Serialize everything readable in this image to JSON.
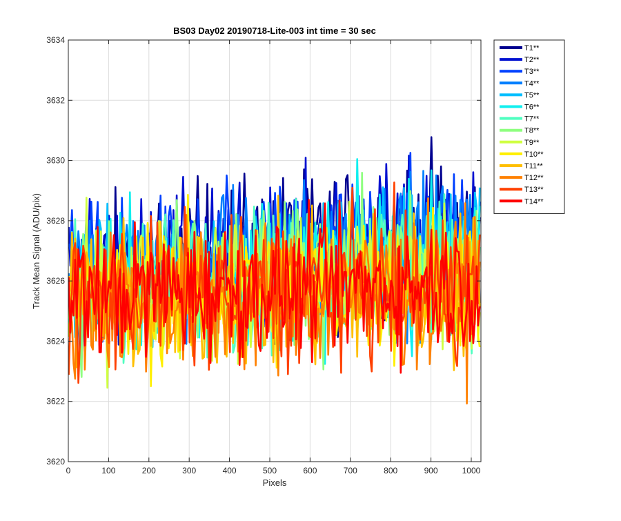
{
  "chart_data": {
    "type": "line",
    "title": "BS03 Day02 20190718-Lite-003 int time = 30 sec",
    "xlabel": "Pixels",
    "ylabel": "Track Mean Signal (ADU/pix)",
    "xlim": [
      0,
      1024
    ],
    "ylim": [
      3620,
      3634
    ],
    "xticks": [
      0,
      100,
      200,
      300,
      400,
      500,
      600,
      700,
      800,
      900,
      1000
    ],
    "yticks": [
      3620,
      3622,
      3624,
      3626,
      3628,
      3630,
      3632,
      3634
    ],
    "grid": true,
    "legend_position": "outside-top-right",
    "x": {
      "start": 1,
      "end": 1024,
      "step": 4
    },
    "series": [
      {
        "name": "T1**",
        "color": "#00008f",
        "mean_start": 3626.3,
        "mean_end": 3627.8,
        "spread_start": 2.1,
        "spread_end": 2.4
      },
      {
        "name": "T2**",
        "color": "#0010d0",
        "mean_start": 3626.2,
        "mean_end": 3627.6,
        "spread_start": 2.1,
        "spread_end": 2.3
      },
      {
        "name": "T3**",
        "color": "#0040ff",
        "mean_start": 3626.1,
        "mean_end": 3627.4,
        "spread_start": 2.1,
        "spread_end": 2.3
      },
      {
        "name": "T4**",
        "color": "#0080ff",
        "mean_start": 3626.0,
        "mean_end": 3627.2,
        "spread_start": 2.1,
        "spread_end": 2.3
      },
      {
        "name": "T5**",
        "color": "#00bfff",
        "mean_start": 3625.9,
        "mean_end": 3627.0,
        "spread_start": 2.1,
        "spread_end": 2.3
      },
      {
        "name": "T6**",
        "color": "#10efef",
        "mean_start": 3625.8,
        "mean_end": 3626.8,
        "spread_start": 2.1,
        "spread_end": 2.3
      },
      {
        "name": "T7**",
        "color": "#50ffc0",
        "mean_start": 3625.7,
        "mean_end": 3626.6,
        "spread_start": 2.1,
        "spread_end": 2.3
      },
      {
        "name": "T8**",
        "color": "#8fff80",
        "mean_start": 3625.6,
        "mean_end": 3626.4,
        "spread_start": 2.1,
        "spread_end": 2.3
      },
      {
        "name": "T9**",
        "color": "#cfff40",
        "mean_start": 3625.5,
        "mean_end": 3626.2,
        "spread_start": 2.1,
        "spread_end": 2.3
      },
      {
        "name": "T10**",
        "color": "#ffef00",
        "mean_start": 3625.4,
        "mean_end": 3626.0,
        "spread_start": 2.2,
        "spread_end": 2.3
      },
      {
        "name": "T11**",
        "color": "#ffbf00",
        "mean_start": 3625.3,
        "mean_end": 3625.8,
        "spread_start": 2.3,
        "spread_end": 2.3
      },
      {
        "name": "T12**",
        "color": "#ff8000",
        "mean_start": 3625.3,
        "mean_end": 3625.7,
        "spread_start": 2.3,
        "spread_end": 2.3
      },
      {
        "name": "T13**",
        "color": "#ff4000",
        "mean_start": 3625.4,
        "mean_end": 3625.8,
        "spread_start": 2.2,
        "spread_end": 2.2
      },
      {
        "name": "T14**",
        "color": "#ff0000",
        "mean_start": 3625.6,
        "mean_end": 3625.9,
        "spread_start": 2.0,
        "spread_end": 2.0
      }
    ]
  }
}
